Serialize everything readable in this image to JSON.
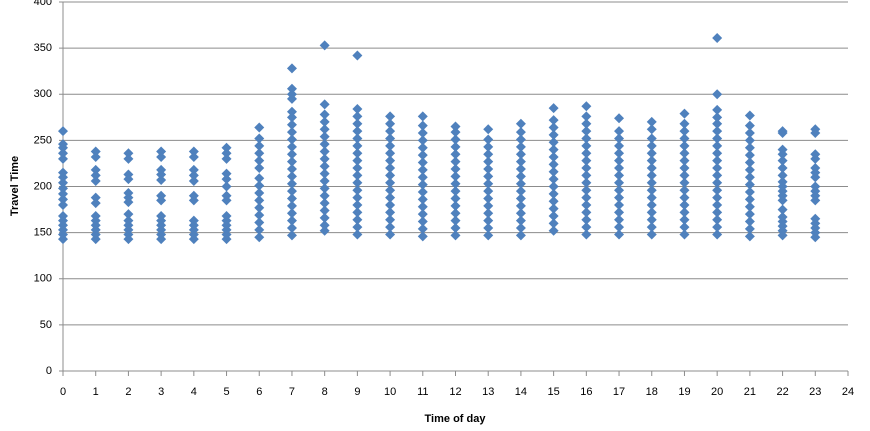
{
  "chart_data": {
    "type": "scatter",
    "x_label": "Time of day",
    "y_label": "Travel Time",
    "color": "#4f81bd",
    "grid": true,
    "xlim": [
      0,
      24
    ],
    "xticks": [
      0,
      1,
      2,
      3,
      4,
      5,
      6,
      7,
      8,
      9,
      10,
      11,
      12,
      13,
      14,
      15,
      16,
      17,
      18,
      19,
      20,
      21,
      22,
      23,
      24
    ],
    "ylim": [
      0,
      400
    ],
    "yticks": [
      0,
      50,
      100,
      150,
      200,
      250,
      300,
      350,
      400
    ],
    "x": [
      0,
      0,
      0,
      0,
      0,
      0,
      0,
      0,
      0,
      0,
      0,
      0,
      0,
      0,
      0,
      0,
      0,
      0,
      1,
      1,
      1,
      1,
      1,
      1,
      1,
      1,
      1,
      1,
      1,
      1,
      1,
      2,
      2,
      2,
      2,
      2,
      2,
      2,
      2,
      2,
      2,
      2,
      2,
      2,
      3,
      3,
      3,
      3,
      3,
      3,
      3,
      3,
      3,
      3,
      3,
      3,
      3,
      4,
      4,
      4,
      4,
      4,
      4,
      4,
      4,
      4,
      4,
      4,
      4,
      5,
      5,
      5,
      5,
      5,
      5,
      5,
      5,
      5,
      5,
      5,
      5,
      5,
      5,
      6,
      6,
      6,
      6,
      6,
      6,
      6,
      6,
      6,
      6,
      6,
      6,
      6,
      6,
      6,
      7,
      7,
      7,
      7,
      7,
      7,
      7,
      7,
      7,
      7,
      7,
      7,
      7,
      7,
      7,
      7,
      7,
      7,
      7,
      7,
      7,
      7,
      8,
      8,
      8,
      8,
      8,
      8,
      8,
      8,
      8,
      8,
      8,
      8,
      8,
      8,
      8,
      8,
      8,
      8,
      8,
      9,
      9,
      9,
      9,
      9,
      9,
      9,
      9,
      9,
      9,
      9,
      9,
      9,
      9,
      9,
      9,
      9,
      9,
      9,
      10,
      10,
      10,
      10,
      10,
      10,
      10,
      10,
      10,
      10,
      10,
      10,
      10,
      10,
      10,
      10,
      10,
      11,
      11,
      11,
      11,
      11,
      11,
      11,
      11,
      11,
      11,
      11,
      11,
      11,
      11,
      11,
      11,
      11,
      12,
      12,
      12,
      12,
      12,
      12,
      12,
      12,
      12,
      12,
      12,
      12,
      12,
      12,
      12,
      12,
      13,
      13,
      13,
      13,
      13,
      13,
      13,
      13,
      13,
      13,
      13,
      13,
      13,
      13,
      13,
      14,
      14,
      14,
      14,
      14,
      14,
      14,
      14,
      14,
      14,
      14,
      14,
      14,
      14,
      14,
      14,
      15,
      15,
      15,
      15,
      15,
      15,
      15,
      15,
      15,
      15,
      15,
      15,
      15,
      15,
      15,
      15,
      15,
      16,
      16,
      16,
      16,
      16,
      16,
      16,
      16,
      16,
      16,
      16,
      16,
      16,
      16,
      16,
      16,
      16,
      16,
      17,
      17,
      17,
      17,
      17,
      17,
      17,
      17,
      17,
      17,
      17,
      17,
      17,
      17,
      17,
      17,
      18,
      18,
      18,
      18,
      18,
      18,
      18,
      18,
      18,
      18,
      18,
      18,
      18,
      18,
      18,
      18,
      19,
      19,
      19,
      19,
      19,
      19,
      19,
      19,
      19,
      19,
      19,
      19,
      19,
      19,
      19,
      19,
      19,
      20,
      20,
      20,
      20,
      20,
      20,
      20,
      20,
      20,
      20,
      20,
      20,
      20,
      20,
      20,
      20,
      20,
      20,
      20,
      20,
      21,
      21,
      21,
      21,
      21,
      21,
      21,
      21,
      21,
      21,
      21,
      21,
      21,
      21,
      21,
      21,
      21,
      22,
      22,
      22,
      22,
      22,
      22,
      22,
      22,
      22,
      22,
      22,
      22,
      22,
      22,
      22,
      22,
      22,
      22,
      23,
      23,
      23,
      23,
      23,
      23,
      23,
      23,
      23,
      23,
      23,
      23,
      23,
      23,
      23,
      23
    ],
    "values": [
      143,
      148,
      153,
      158,
      163,
      168,
      180,
      186,
      192,
      198,
      204,
      210,
      215,
      230,
      236,
      242,
      246,
      260,
      143,
      148,
      153,
      158,
      163,
      168,
      182,
      188,
      206,
      212,
      218,
      232,
      238,
      143,
      148,
      153,
      158,
      163,
      170,
      183,
      188,
      193,
      208,
      213,
      230,
      236,
      143,
      148,
      153,
      158,
      163,
      168,
      185,
      190,
      207,
      213,
      218,
      232,
      238,
      143,
      148,
      153,
      158,
      163,
      185,
      190,
      206,
      212,
      218,
      232,
      238,
      143,
      148,
      153,
      158,
      163,
      168,
      185,
      190,
      200,
      208,
      214,
      230,
      236,
      242,
      145,
      153,
      161,
      169,
      177,
      185,
      193,
      201,
      209,
      220,
      228,
      236,
      244,
      252,
      264,
      147,
      155,
      163,
      171,
      179,
      187,
      195,
      203,
      211,
      219,
      227,
      235,
      243,
      251,
      259,
      267,
      275,
      281,
      295,
      300,
      306,
      328,
      152,
      158,
      166,
      174,
      182,
      190,
      198,
      206,
      214,
      222,
      230,
      238,
      246,
      254,
      262,
      270,
      278,
      289,
      353,
      148,
      156,
      164,
      172,
      180,
      188,
      196,
      204,
      212,
      220,
      228,
      236,
      244,
      252,
      260,
      268,
      276,
      284,
      342,
      148,
      156,
      164,
      172,
      180,
      188,
      196,
      204,
      212,
      220,
      228,
      236,
      244,
      252,
      260,
      268,
      276,
      146,
      154,
      162,
      170,
      178,
      186,
      194,
      202,
      210,
      218,
      226,
      234,
      242,
      250,
      258,
      266,
      276,
      147,
      155,
      163,
      171,
      179,
      187,
      195,
      203,
      211,
      219,
      227,
      235,
      243,
      251,
      259,
      265,
      147,
      155,
      163,
      171,
      179,
      187,
      195,
      203,
      211,
      219,
      227,
      235,
      243,
      251,
      262,
      147,
      155,
      163,
      171,
      179,
      187,
      195,
      203,
      211,
      219,
      227,
      235,
      243,
      251,
      259,
      268,
      152,
      160,
      168,
      176,
      184,
      192,
      200,
      208,
      216,
      224,
      232,
      240,
      248,
      256,
      264,
      272,
      285,
      148,
      156,
      164,
      172,
      180,
      188,
      196,
      204,
      212,
      220,
      228,
      236,
      244,
      252,
      260,
      268,
      276,
      287,
      148,
      156,
      164,
      172,
      180,
      188,
      196,
      204,
      212,
      220,
      228,
      236,
      244,
      252,
      260,
      274,
      148,
      156,
      164,
      172,
      180,
      188,
      196,
      204,
      212,
      220,
      228,
      236,
      244,
      252,
      262,
      270,
      148,
      156,
      164,
      172,
      180,
      188,
      196,
      204,
      212,
      220,
      228,
      236,
      244,
      252,
      260,
      268,
      279,
      148,
      156,
      164,
      172,
      180,
      188,
      196,
      204,
      212,
      220,
      228,
      236,
      244,
      252,
      260,
      268,
      275,
      283,
      300,
      361,
      146,
      154,
      162,
      170,
      178,
      186,
      194,
      202,
      210,
      218,
      226,
      234,
      242,
      250,
      258,
      266,
      277,
      147,
      152,
      157,
      162,
      167,
      175,
      185,
      190,
      195,
      200,
      205,
      212,
      220,
      228,
      235,
      240,
      258,
      260,
      145,
      150,
      155,
      160,
      165,
      185,
      190,
      195,
      200,
      210,
      215,
      220,
      230,
      235,
      258,
      262
    ]
  }
}
